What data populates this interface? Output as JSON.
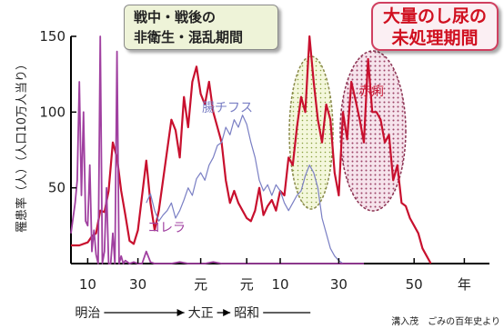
{
  "callouts": {
    "green_line1": "戦中・戦後の",
    "green_line2": "非衛生・混乱期間",
    "pink_line1": "大量のし尿の",
    "pink_line2": "未処理期間"
  },
  "source": "溝入茂　ごみの百年史より",
  "colors": {
    "dysentery": "#c8102e",
    "typhoid": "#7a7fc4",
    "cholera": "#a040a0",
    "callout_text_red": "#d01020"
  },
  "chart_data": {
    "type": "line",
    "ylabel": "罹患率（人）（人口10万人当り）",
    "ylim": [
      0,
      150
    ],
    "yticks": [
      50,
      100,
      150
    ],
    "xlim": [
      0,
      100
    ],
    "xticks": [
      {
        "x": 4,
        "label": "10"
      },
      {
        "x": 16,
        "label": "30"
      },
      {
        "x": 31,
        "label": "元"
      },
      {
        "x": 42,
        "label": "元"
      },
      {
        "x": 50,
        "label": "10"
      },
      {
        "x": 64,
        "label": "30"
      },
      {
        "x": 82,
        "label": "50"
      },
      {
        "x": 94,
        "label": "年"
      }
    ],
    "eras": [
      {
        "x": 4,
        "label": "明治"
      },
      {
        "x": 31,
        "label": "大正"
      },
      {
        "x": 42,
        "label": "昭和"
      }
    ],
    "series": [
      {
        "name": "赤痢",
        "color": "#c8102e",
        "points": [
          [
            0,
            12
          ],
          [
            2,
            12
          ],
          [
            4,
            14
          ],
          [
            5,
            18
          ],
          [
            6,
            20
          ],
          [
            7,
            35
          ],
          [
            8,
            34
          ],
          [
            9,
            48
          ],
          [
            10,
            80
          ],
          [
            11,
            70
          ],
          [
            12,
            48
          ],
          [
            13,
            32
          ],
          [
            14,
            15
          ],
          [
            15,
            13
          ],
          [
            16,
            22
          ],
          [
            17,
            45
          ],
          [
            18,
            68
          ],
          [
            19,
            40
          ],
          [
            20,
            22
          ],
          [
            21,
            35
          ],
          [
            22,
            55
          ],
          [
            23,
            75
          ],
          [
            24,
            95
          ],
          [
            25,
            88
          ],
          [
            26,
            70
          ],
          [
            27,
            110
          ],
          [
            28,
            90
          ],
          [
            29,
            120
          ],
          [
            30,
            130
          ],
          [
            31,
            112
          ],
          [
            32,
            105
          ],
          [
            33,
            120
          ],
          [
            34,
            100
          ],
          [
            35,
            90
          ],
          [
            36,
            80
          ],
          [
            37,
            55
          ],
          [
            38,
            40
          ],
          [
            39,
            48
          ],
          [
            40,
            40
          ],
          [
            41,
            35
          ],
          [
            42,
            30
          ],
          [
            43,
            28
          ],
          [
            44,
            35
          ],
          [
            45,
            50
          ],
          [
            46,
            32
          ],
          [
            47,
            38
          ],
          [
            48,
            42
          ],
          [
            49,
            35
          ],
          [
            50,
            48
          ],
          [
            51,
            45
          ],
          [
            52,
            70
          ],
          [
            53,
            65
          ],
          [
            54,
            90
          ],
          [
            55,
            110
          ],
          [
            56,
            100
          ],
          [
            57,
            150
          ],
          [
            58,
            120
          ],
          [
            59,
            95
          ],
          [
            60,
            80
          ],
          [
            61,
            105
          ],
          [
            62,
            95
          ],
          [
            63,
            60
          ],
          [
            64,
            45
          ],
          [
            65,
            100
          ],
          [
            66,
            82
          ],
          [
            67,
            120
          ],
          [
            68,
            108
          ],
          [
            69,
            95
          ],
          [
            70,
            80
          ],
          [
            71,
            135
          ],
          [
            72,
            100
          ],
          [
            73,
            100
          ],
          [
            74,
            95
          ],
          [
            75,
            80
          ],
          [
            76,
            85
          ],
          [
            77,
            55
          ],
          [
            78,
            65
          ],
          [
            79,
            40
          ],
          [
            80,
            38
          ],
          [
            81,
            30
          ],
          [
            82,
            25
          ],
          [
            83,
            20
          ],
          [
            84,
            10
          ],
          [
            85,
            5
          ],
          [
            86,
            0
          ]
        ]
      },
      {
        "name": "腸チフス",
        "color": "#7a7fc4",
        "points": [
          [
            18,
            40
          ],
          [
            19,
            46
          ],
          [
            20,
            35
          ],
          [
            21,
            28
          ],
          [
            22,
            32
          ],
          [
            23,
            35
          ],
          [
            24,
            40
          ],
          [
            25,
            30
          ],
          [
            26,
            35
          ],
          [
            27,
            42
          ],
          [
            28,
            50
          ],
          [
            29,
            45
          ],
          [
            30,
            56
          ],
          [
            31,
            60
          ],
          [
            32,
            55
          ],
          [
            33,
            65
          ],
          [
            34,
            70
          ],
          [
            35,
            78
          ],
          [
            36,
            80
          ],
          [
            37,
            90
          ],
          [
            38,
            85
          ],
          [
            39,
            95
          ],
          [
            40,
            90
          ],
          [
            41,
            98
          ],
          [
            42,
            92
          ],
          [
            43,
            80
          ],
          [
            44,
            70
          ],
          [
            45,
            55
          ],
          [
            46,
            48
          ],
          [
            47,
            52
          ],
          [
            48,
            45
          ],
          [
            49,
            52
          ],
          [
            50,
            48
          ],
          [
            51,
            40
          ],
          [
            52,
            35
          ],
          [
            53,
            40
          ],
          [
            54,
            45
          ],
          [
            55,
            48
          ],
          [
            56,
            58
          ],
          [
            57,
            65
          ],
          [
            58,
            60
          ],
          [
            59,
            50
          ],
          [
            60,
            30
          ],
          [
            61,
            20
          ],
          [
            62,
            10
          ],
          [
            63,
            5
          ],
          [
            64,
            2
          ],
          [
            65,
            0
          ]
        ]
      },
      {
        "name": "コレラ",
        "color": "#a040a0",
        "points": [
          [
            0,
            20
          ],
          [
            1,
            40
          ],
          [
            1.5,
            55
          ],
          [
            2,
            120
          ],
          [
            2.5,
            45
          ],
          [
            3,
            100
          ],
          [
            3.5,
            28
          ],
          [
            4,
            25
          ],
          [
            4.5,
            65
          ],
          [
            5,
            8
          ],
          [
            5.5,
            22
          ],
          [
            6,
            6
          ],
          [
            6.5,
            0
          ],
          [
            7,
            150
          ],
          [
            7.5,
            0
          ],
          [
            8,
            8
          ],
          [
            8.5,
            50
          ],
          [
            9,
            0
          ],
          [
            9.5,
            0
          ],
          [
            10,
            20
          ],
          [
            10.5,
            0
          ],
          [
            11,
            140
          ],
          [
            11.5,
            0
          ],
          [
            12,
            5
          ],
          [
            12.5,
            0
          ],
          [
            13,
            2
          ],
          [
            14,
            0
          ],
          [
            15,
            1
          ],
          [
            16,
            0
          ],
          [
            17,
            0
          ],
          [
            18,
            8
          ],
          [
            19,
            1
          ],
          [
            20,
            0
          ],
          [
            22,
            0
          ],
          [
            24,
            0
          ],
          [
            26,
            1
          ],
          [
            28,
            0
          ],
          [
            30,
            0
          ],
          [
            32,
            0
          ],
          [
            34,
            1
          ],
          [
            36,
            0
          ],
          [
            40,
            0
          ],
          [
            44,
            0
          ],
          [
            48,
            0
          ],
          [
            52,
            0
          ],
          [
            56,
            0
          ],
          [
            60,
            0
          ],
          [
            64,
            0
          ],
          [
            70,
            0
          ]
        ]
      }
    ],
    "annotations": [
      {
        "text": "腸チフス",
        "color": "#7a7fc4"
      },
      {
        "text": "赤痢",
        "color": "#c8102e"
      },
      {
        "text": "コレラ",
        "color": "#a040a0"
      }
    ]
  }
}
